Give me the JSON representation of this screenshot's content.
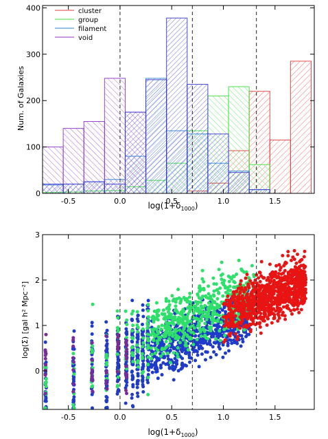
{
  "chart_data": [
    {
      "type": "histogram",
      "xlabel": "log(1+δ1000)",
      "ylabel": "Num. of Galaxies",
      "xlim": [
        -0.75,
        1.88
      ],
      "ylim": [
        0,
        405
      ],
      "xticks": [
        -0.5,
        0.0,
        0.5,
        1.0,
        1.5
      ],
      "xtick_labels": [
        "-0.5",
        "0.0",
        "0.5",
        "1.0",
        "1.5"
      ],
      "yticks": [
        0,
        100,
        200,
        300,
        400
      ],
      "ytick_labels": [
        "0",
        "100",
        "200",
        "300",
        "400"
      ],
      "bins": [
        -0.75,
        -0.55,
        -0.35,
        -0.15,
        0.05,
        0.25,
        0.45,
        0.65,
        0.85,
        1.05,
        1.25,
        1.45,
        1.65,
        1.85
      ],
      "hatching": "diagonal lines, open outline bars",
      "vlines": [
        0.0,
        0.7,
        1.32
      ],
      "legend": {
        "placement": "top-left"
      },
      "series": [
        {
          "name": "cluster",
          "color": "#e23a3a",
          "values": [
            0,
            0,
            0,
            0,
            0,
            0,
            0,
            5,
            22,
            92,
            220,
            115,
            285
          ]
        },
        {
          "name": "group",
          "color": "#3fe03f",
          "values": [
            2,
            3,
            5,
            6,
            14,
            28,
            65,
            135,
            210,
            230,
            62,
            0,
            0
          ]
        },
        {
          "name": "filament",
          "color": "#2d7fd0",
          "values": [
            18,
            20,
            25,
            30,
            80,
            248,
            135,
            128,
            65,
            48,
            8,
            0,
            0
          ]
        },
        {
          "name": "void",
          "color": "#8e32c8",
          "values": [
            100,
            140,
            155,
            248,
            175,
            0,
            0,
            0,
            0,
            0,
            0,
            0,
            0
          ]
        },
        {
          "name": "",
          "color": "#3535d0",
          "values": [
            20,
            20,
            25,
            20,
            175,
            245,
            378,
            235,
            128,
            45,
            8,
            0,
            0
          ]
        }
      ]
    },
    {
      "type": "scatter",
      "xlabel": "log(1+δ1000)",
      "ylabel": "log(Σ) [gal h² Mpc⁻²]",
      "xlim": [
        -0.75,
        1.88
      ],
      "ylim": [
        -0.85,
        3.0
      ],
      "xticks": [
        -0.5,
        0.0,
        0.5,
        1.0,
        1.5
      ],
      "xtick_labels": [
        "-0.5",
        "0.0",
        "0.5",
        "1.0",
        "1.5"
      ],
      "yticks": [
        0,
        1,
        2,
        3
      ],
      "ytick_labels": [
        "0",
        "1",
        "2",
        "3"
      ],
      "vlines": [
        0.0,
        0.7,
        1.32
      ],
      "series": [
        {
          "color": "#1e3cc8",
          "x_range": [
            -0.75,
            1.25
          ],
          "y_range": [
            -0.85,
            1.95
          ],
          "points": 1300,
          "trend": "log(Σ) ≈ 0.1 + 0.9 · log(1+δ1000), discrete x columns below 0.3"
        },
        {
          "color": "#2ee06a",
          "x_range": [
            -0.75,
            1.3
          ],
          "y_range": [
            -0.3,
            2.7
          ],
          "points": 700
        },
        {
          "color": "#e81414",
          "x_range": [
            1.0,
            1.8
          ],
          "y_range": [
            0.6,
            3.0
          ],
          "points": 900
        },
        {
          "color": "#7a2a9a",
          "x_range": [
            -0.75,
            0.3
          ],
          "y_range": [
            -0.85,
            1.2
          ],
          "points": 60
        }
      ]
    }
  ]
}
